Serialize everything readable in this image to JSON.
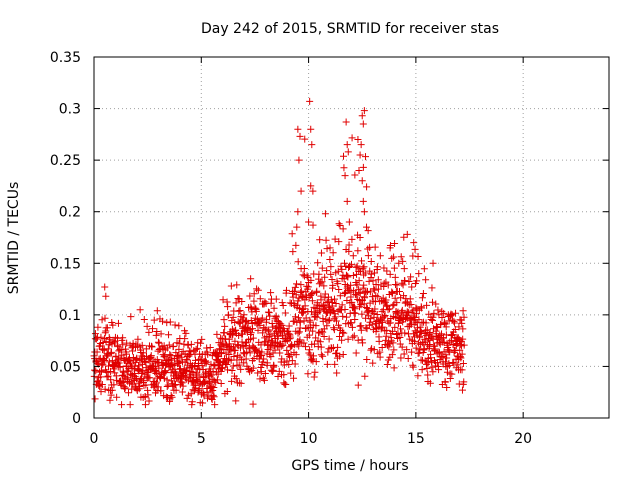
{
  "colors": {
    "series": "#e00000",
    "grid": "#a0a0a0",
    "axis": "#000000"
  },
  "chart_data": {
    "type": "scatter",
    "title": "Day 242 of 2015, SRMTID for receiver stas",
    "xlabel": "GPS time / hours",
    "ylabel": "SRMTID / TECUs",
    "xlim": [
      0,
      24
    ],
    "ylim": [
      0,
      0.35
    ],
    "xticks": [
      0,
      5,
      10,
      15,
      20
    ],
    "xtick_labels": [
      "0",
      "5",
      "10",
      "15",
      "20"
    ],
    "yticks": [
      0,
      0.05,
      0.1,
      0.15,
      0.2,
      0.25,
      0.3,
      0.35
    ],
    "ytick_labels": [
      "0",
      "0.05",
      "0.1",
      "0.15",
      "0.2",
      "0.25",
      "0.3",
      "0.35"
    ],
    "grid": true,
    "marker": "+",
    "series": [
      {
        "name": "SRMTID",
        "x_range": [
          0,
          17.25
        ],
        "x_step": 0.01,
        "envelope": [
          {
            "x": 0.0,
            "median": 0.05,
            "spread": 0.015,
            "max": 0.08
          },
          {
            "x": 0.5,
            "median": 0.06,
            "spread": 0.018,
            "max": 0.127
          },
          {
            "x": 1.0,
            "median": 0.05,
            "spread": 0.015,
            "max": 0.09
          },
          {
            "x": 2.0,
            "median": 0.045,
            "spread": 0.015,
            "max": 0.105
          },
          {
            "x": 3.0,
            "median": 0.05,
            "spread": 0.016,
            "max": 0.104
          },
          {
            "x": 4.0,
            "median": 0.05,
            "spread": 0.016,
            "max": 0.09
          },
          {
            "x": 5.0,
            "median": 0.045,
            "spread": 0.015,
            "max": 0.085
          },
          {
            "x": 5.5,
            "median": 0.035,
            "spread": 0.013,
            "max": 0.07
          },
          {
            "x": 6.0,
            "median": 0.06,
            "spread": 0.022,
            "max": 0.12
          },
          {
            "x": 7.0,
            "median": 0.075,
            "spread": 0.02,
            "max": 0.135
          },
          {
            "x": 8.0,
            "median": 0.08,
            "spread": 0.02,
            "max": 0.12
          },
          {
            "x": 9.0,
            "median": 0.065,
            "spread": 0.018,
            "max": 0.13
          },
          {
            "x": 9.6,
            "median": 0.11,
            "spread": 0.03,
            "max": 0.28
          },
          {
            "x": 10.0,
            "median": 0.1,
            "spread": 0.028,
            "max": 0.307
          },
          {
            "x": 11.0,
            "median": 0.1,
            "spread": 0.026,
            "max": 0.17
          },
          {
            "x": 11.8,
            "median": 0.12,
            "spread": 0.03,
            "max": 0.287
          },
          {
            "x": 12.5,
            "median": 0.12,
            "spread": 0.032,
            "max": 0.298
          },
          {
            "x": 13.5,
            "median": 0.1,
            "spread": 0.025,
            "max": 0.165
          },
          {
            "x": 14.5,
            "median": 0.1,
            "spread": 0.025,
            "max": 0.178
          },
          {
            "x": 15.5,
            "median": 0.075,
            "spread": 0.018,
            "max": 0.15
          },
          {
            "x": 16.5,
            "median": 0.07,
            "spread": 0.017,
            "max": 0.1
          },
          {
            "x": 17.25,
            "median": 0.065,
            "spread": 0.015,
            "max": 0.105
          }
        ],
        "min": 0.013,
        "peaks": [
          {
            "x": 9.5,
            "y": 0.28
          },
          {
            "x": 9.6,
            "y": 0.273
          },
          {
            "x": 9.55,
            "y": 0.25
          },
          {
            "x": 9.65,
            "y": 0.22
          },
          {
            "x": 9.45,
            "y": 0.185
          },
          {
            "x": 9.5,
            "y": 0.2
          },
          {
            "x": 10.05,
            "y": 0.307
          },
          {
            "x": 10.1,
            "y": 0.28
          },
          {
            "x": 10.15,
            "y": 0.265
          },
          {
            "x": 10.1,
            "y": 0.225
          },
          {
            "x": 10.2,
            "y": 0.22
          },
          {
            "x": 10.0,
            "y": 0.19
          },
          {
            "x": 11.75,
            "y": 0.287
          },
          {
            "x": 11.8,
            "y": 0.265
          },
          {
            "x": 11.85,
            "y": 0.258
          },
          {
            "x": 11.7,
            "y": 0.235
          },
          {
            "x": 11.8,
            "y": 0.21
          },
          {
            "x": 11.9,
            "y": 0.19
          },
          {
            "x": 12.3,
            "y": 0.27
          },
          {
            "x": 12.4,
            "y": 0.255
          },
          {
            "x": 12.35,
            "y": 0.24
          },
          {
            "x": 12.5,
            "y": 0.293
          },
          {
            "x": 12.55,
            "y": 0.285
          },
          {
            "x": 12.6,
            "y": 0.298
          },
          {
            "x": 12.45,
            "y": 0.265
          },
          {
            "x": 12.5,
            "y": 0.23
          },
          {
            "x": 12.55,
            "y": 0.21
          },
          {
            "x": 12.6,
            "y": 0.2
          },
          {
            "x": 12.7,
            "y": 0.185
          },
          {
            "x": 12.4,
            "y": 0.175
          },
          {
            "x": 14.6,
            "y": 0.178
          },
          {
            "x": 14.9,
            "y": 0.17
          },
          {
            "x": 13.8,
            "y": 0.165
          },
          {
            "x": 11.0,
            "y": 0.165
          },
          {
            "x": 10.6,
            "y": 0.16
          },
          {
            "x": 15.8,
            "y": 0.15
          },
          {
            "x": 0.5,
            "y": 0.127
          },
          {
            "x": 0.55,
            "y": 0.118
          },
          {
            "x": 2.15,
            "y": 0.105
          },
          {
            "x": 2.95,
            "y": 0.104
          },
          {
            "x": 7.3,
            "y": 0.135
          },
          {
            "x": 6.4,
            "y": 0.128
          }
        ]
      }
    ]
  }
}
